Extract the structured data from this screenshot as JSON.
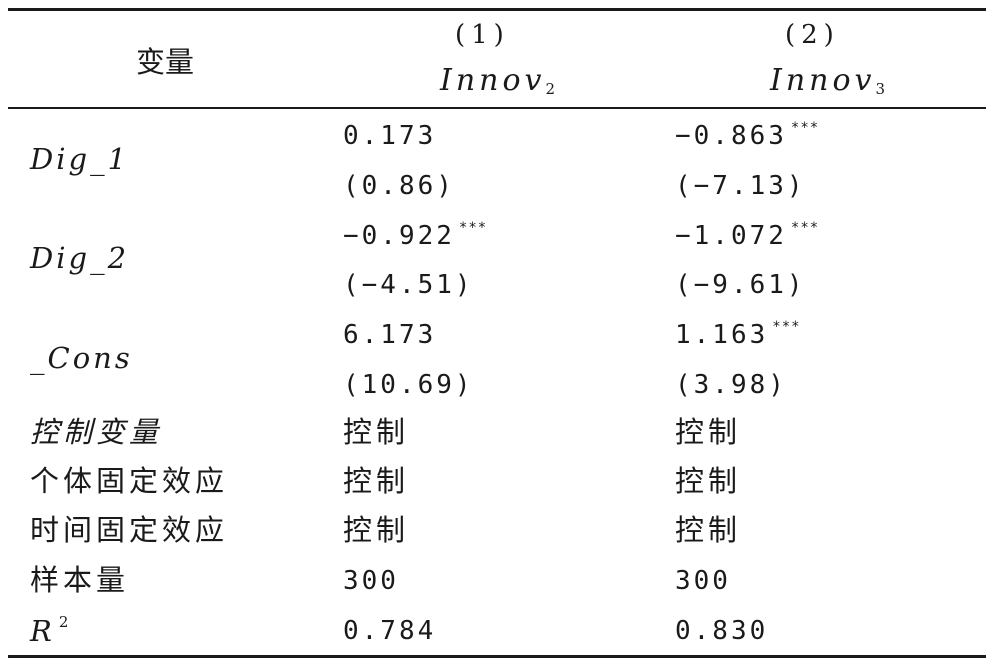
{
  "header": {
    "var_label": "变量",
    "col1_num": "(1)",
    "col2_num": "(2)",
    "col1_dep": "Innov",
    "col1_dep_sub": "2",
    "col2_dep": "Innov",
    "col2_dep_sub": "3"
  },
  "rows": {
    "dig1": {
      "label": "Dig_1",
      "c1_coef": "0.173",
      "c1_stars": "",
      "c1_t": "(0.86)",
      "c2_coef": "−0.863",
      "c2_stars": "***",
      "c2_t": "(−7.13)"
    },
    "dig2": {
      "label": "Dig_2",
      "c1_coef": "−0.922",
      "c1_stars": "***",
      "c1_t": "(−4.51)",
      "c2_coef": "−1.072",
      "c2_stars": "***",
      "c2_t": "(−9.61)"
    },
    "cons": {
      "label": "_Cons",
      "c1_coef": "6.173",
      "c1_stars": "",
      "c1_t": "(10.69)",
      "c2_coef": "1.163",
      "c2_stars": "***",
      "c2_t": "(3.98)"
    },
    "controls": {
      "label": "控制变量",
      "c1": "控制",
      "c2": "控制"
    },
    "indiv_fe": {
      "label": "个体固定效应",
      "c1": "控制",
      "c2": "控制"
    },
    "time_fe": {
      "label": "时间固定效应",
      "c1": "控制",
      "c2": "控制"
    },
    "n": {
      "label": "样本量",
      "c1": "300",
      "c2": "300"
    },
    "r2": {
      "label": "R",
      "label_sup": "2",
      "c1": "0.784",
      "c2": "0.830"
    }
  }
}
